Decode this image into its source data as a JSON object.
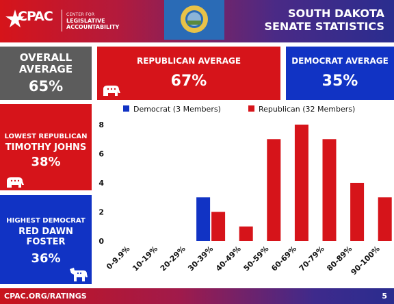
{
  "header": {
    "org_line1": "CENTER FOR",
    "org_line2": "LEGISLATIVE",
    "org_line3": "ACCOUNTABILITY",
    "logo_text": "CPAC",
    "title_line1": "SOUTH DAKOTA",
    "title_line2": "SENATE STATISTICS"
  },
  "stats": {
    "overall_label_1": "OVERALL",
    "overall_label_2": "AVERAGE",
    "overall_value": "65%",
    "rep_avg_label": "REPUBLICAN AVERAGE",
    "rep_avg_value": "67%",
    "dem_avg_label": "DEMOCRAT AVERAGE",
    "dem_avg_value": "35%",
    "lowest_rep_label": "LOWEST REPUBLICAN",
    "lowest_rep_name": "TIMOTHY JOHNS",
    "lowest_rep_value": "38%",
    "highest_dem_label": "HIGHEST DEMOCRAT",
    "highest_dem_name_1": "RED DAWN",
    "highest_dem_name_2": "FOSTER",
    "highest_dem_value": "36%"
  },
  "footer": {
    "url": "CPAC.ORG/RATINGS",
    "page": "5"
  },
  "colors": {
    "republican": "#d6141a",
    "democrat": "#1133c4",
    "overall": "#5c5c5c"
  },
  "chart_data": {
    "type": "bar",
    "categories": [
      "0-9.9%",
      "10-19%",
      "20-29%",
      "30-39%",
      "40-49%",
      "50-59%",
      "60-69%",
      "70-79%",
      "80-89%",
      "90-100%"
    ],
    "series": [
      {
        "name": "Democrat (3 Members)",
        "values": [
          0,
          0,
          0,
          3,
          0,
          0,
          0,
          0,
          0,
          0
        ],
        "color": "#1133c4"
      },
      {
        "name": "Republican (32 Members)",
        "values": [
          0,
          0,
          0,
          2,
          1,
          7,
          8,
          7,
          4,
          3
        ],
        "color": "#d6141a"
      }
    ],
    "yticks": [
      0,
      2,
      4,
      6,
      8
    ],
    "ylim": [
      0,
      8
    ],
    "grid": false,
    "legend": "top"
  }
}
